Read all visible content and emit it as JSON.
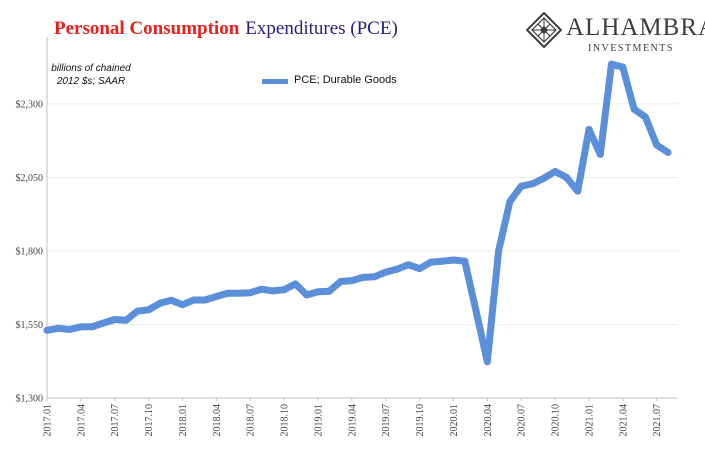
{
  "header": {
    "title_part1": "Personal Consumption",
    "title_part2": "Expenditures (PCE)",
    "title_color_part1": "#e8211c",
    "title_color_part2": "#22227a"
  },
  "logo": {
    "name": "ALHAMBRA",
    "sub": "INVESTMENTS",
    "icon": "alhambra-diamond-lattice-icon"
  },
  "chart_data": {
    "type": "line",
    "ylabel_note": "billions of chained 2012 $s; SAAR",
    "ylim": [
      1300,
      2500
    ],
    "y_ticks": [
      1300,
      1550,
      1800,
      2050,
      2300
    ],
    "y_tick_labels": [
      "$1,300",
      "$1,550",
      "$1,800",
      "$2,050",
      "$2,300"
    ],
    "x_tick_labels": [
      "2017.01",
      "2017.04",
      "2017.07",
      "2017.10",
      "2018.01",
      "2018.04",
      "2018.07",
      "2018.10",
      "2019.01",
      "2019.04",
      "2019.07",
      "2019.10",
      "2020.01",
      "2020.04",
      "2020.07",
      "2020.10",
      "2021.01",
      "2021.04",
      "2021.07"
    ],
    "grid": "horizontal",
    "legend_position": "top-center",
    "series_color": "#5b8fd9",
    "x": [
      "2017.01",
      "2017.02",
      "2017.03",
      "2017.04",
      "2017.05",
      "2017.06",
      "2017.07",
      "2017.08",
      "2017.09",
      "2017.10",
      "2017.11",
      "2017.12",
      "2018.01",
      "2018.02",
      "2018.03",
      "2018.04",
      "2018.05",
      "2018.06",
      "2018.07",
      "2018.08",
      "2018.09",
      "2018.10",
      "2018.11",
      "2018.12",
      "2019.01",
      "2019.02",
      "2019.03",
      "2019.04",
      "2019.05",
      "2019.06",
      "2019.07",
      "2019.08",
      "2019.09",
      "2019.10",
      "2019.11",
      "2019.12",
      "2020.01",
      "2020.02",
      "2020.03",
      "2020.04",
      "2020.05",
      "2020.06",
      "2020.07",
      "2020.08",
      "2020.09",
      "2020.10",
      "2020.11",
      "2020.12",
      "2021.01",
      "2021.02",
      "2021.03",
      "2021.04",
      "2021.05",
      "2021.06",
      "2021.07",
      "2021.08"
    ],
    "series": [
      {
        "name": "PCE; Durable Goods",
        "values": [
          1530,
          1537,
          1533,
          1542,
          1542,
          1555,
          1567,
          1564,
          1595,
          1600,
          1622,
          1632,
          1617,
          1633,
          1633,
          1645,
          1656,
          1656,
          1658,
          1670,
          1664,
          1668,
          1688,
          1650,
          1661,
          1663,
          1696,
          1699,
          1710,
          1712,
          1728,
          1738,
          1753,
          1740,
          1762,
          1765,
          1769,
          1765,
          1595,
          1423,
          1800,
          1968,
          2020,
          2028,
          2047,
          2070,
          2050,
          2003,
          2213,
          2128,
          2435,
          2425,
          2282,
          2255,
          2160,
          2135
        ]
      }
    ]
  }
}
